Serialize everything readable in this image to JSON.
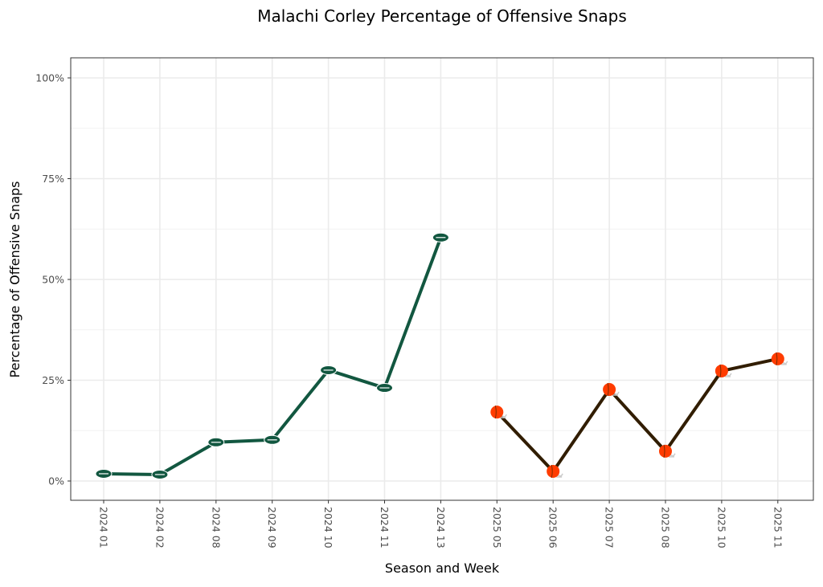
{
  "chart_data": {
    "type": "line",
    "title": "Malachi Corley Percentage of Offensive Snaps",
    "xlabel": "Season and Week",
    "ylabel": "Percentage of Offensive Snaps",
    "categories": [
      "2024 01",
      "2024 02",
      "2024 08",
      "2024 09",
      "2024 10",
      "2024 11",
      "2024 13",
      "2025 05",
      "2025 06",
      "2025 07",
      "2025 08",
      "2025 10",
      "2025 11"
    ],
    "ylim": [
      0,
      100
    ],
    "yticks": [
      0,
      25,
      50,
      75,
      100
    ],
    "ytick_labels": [
      "0%",
      "25%",
      "50%",
      "75%",
      "100%"
    ],
    "grid": true,
    "series": [
      {
        "name": "NYJ",
        "color": "#125740",
        "marker_color": "#125740",
        "marker": "jets-logo-icon",
        "x": [
          "2024 01",
          "2024 02",
          "2024 08",
          "2024 09",
          "2024 10",
          "2024 11",
          "2024 13"
        ],
        "values": [
          1.8,
          1.6,
          9.6,
          10.2,
          27.5,
          23.1,
          60.4
        ]
      },
      {
        "name": "CLE",
        "color": "#311D00",
        "marker_color": "#FF3C00",
        "marker": "browns-helmet-icon",
        "x": [
          "2025 05",
          "2025 06",
          "2025 07",
          "2025 08",
          "2025 10",
          "2025 11"
        ],
        "values": [
          17.1,
          2.4,
          22.7,
          7.4,
          27.3,
          30.3
        ]
      }
    ]
  }
}
